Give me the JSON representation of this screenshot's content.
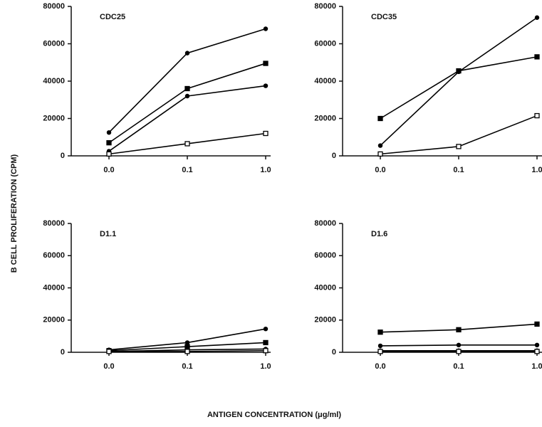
{
  "ylabel": "B CELL PROLIFERATION (CPM)",
  "xlabel": "ANTIGEN CONCENTRATION (μg/ml)",
  "chart_data": [
    {
      "type": "line",
      "title": "CDC25",
      "categories": [
        "0.0",
        "0.1",
        "1.0"
      ],
      "ylim": [
        0,
        80000
      ],
      "yticks": [
        0,
        20000,
        40000,
        60000,
        80000
      ],
      "series": [
        {
          "color": "#000000",
          "marker": "circle",
          "values": [
            12500,
            55000,
            68000
          ]
        },
        {
          "color": "#000000",
          "marker": "square",
          "values": [
            7000,
            36000,
            49500
          ]
        },
        {
          "color": "#000000",
          "marker": "circle",
          "values": [
            2500,
            32000,
            37500
          ]
        },
        {
          "color": "#000000",
          "marker": "open-square",
          "values": [
            1000,
            6500,
            12000
          ]
        }
      ]
    },
    {
      "type": "line",
      "title": "CDC35",
      "categories": [
        "0.0",
        "0.1",
        "1.0"
      ],
      "ylim": [
        0,
        80000
      ],
      "yticks": [
        0,
        20000,
        40000,
        60000,
        80000
      ],
      "series": [
        {
          "color": "#000000",
          "marker": "circle",
          "values": [
            5500,
            45000,
            74000
          ]
        },
        {
          "color": "#000000",
          "marker": "square",
          "values": [
            20000,
            45500,
            53000
          ]
        },
        {
          "color": "#000000",
          "marker": "open-square",
          "values": [
            1000,
            5000,
            21500
          ]
        }
      ]
    },
    {
      "type": "line",
      "title": "D1.1",
      "categories": [
        "0.0",
        "0.1",
        "1.0"
      ],
      "ylim": [
        0,
        80000
      ],
      "yticks": [
        0,
        20000,
        40000,
        60000,
        80000
      ],
      "series": [
        {
          "color": "#000000",
          "marker": "circle",
          "values": [
            1500,
            6000,
            14500
          ]
        },
        {
          "color": "#000000",
          "marker": "square",
          "values": [
            1000,
            3500,
            6000
          ]
        },
        {
          "color": "#000000",
          "marker": "circle",
          "values": [
            500,
            1500,
            2000
          ]
        },
        {
          "color": "#000000",
          "marker": "open-square",
          "values": [
            500,
            500,
            1000
          ]
        }
      ]
    },
    {
      "type": "line",
      "title": "D1.6",
      "categories": [
        "0.0",
        "0.1",
        "1.0"
      ],
      "ylim": [
        0,
        80000
      ],
      "yticks": [
        0,
        20000,
        40000,
        60000,
        80000
      ],
      "series": [
        {
          "color": "#000000",
          "marker": "square",
          "values": [
            12500,
            14000,
            17500
          ]
        },
        {
          "color": "#000000",
          "marker": "circle",
          "values": [
            4000,
            4500,
            4500
          ]
        },
        {
          "color": "#000000",
          "marker": "circle",
          "values": [
            1000,
            1000,
            1000
          ]
        },
        {
          "color": "#000000",
          "marker": "open-square",
          "values": [
            500,
            500,
            500
          ]
        }
      ]
    }
  ]
}
